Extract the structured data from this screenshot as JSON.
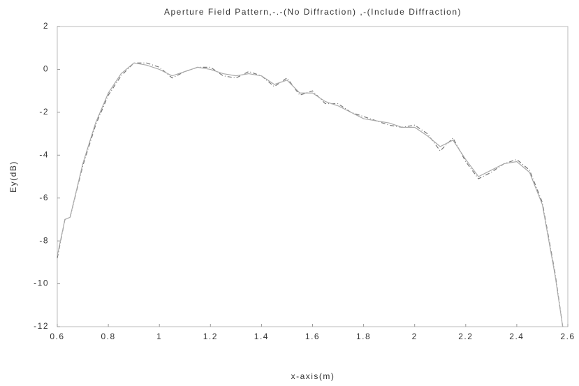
{
  "chart_data": {
    "type": "line",
    "title": "Aperture Field Pattern,-.-(No Diffraction) ,-(Include Diffraction)",
    "xlabel": "x-axis(m)",
    "ylabel": "Ey(dB)",
    "x": [
      0.6,
      0.63,
      0.65,
      0.7,
      0.75,
      0.8,
      0.85,
      0.9,
      0.95,
      1.0,
      1.05,
      1.1,
      1.15,
      1.2,
      1.25,
      1.3,
      1.35,
      1.4,
      1.45,
      1.5,
      1.55,
      1.6,
      1.65,
      1.7,
      1.75,
      1.8,
      1.85,
      1.9,
      1.95,
      2.0,
      2.05,
      2.1,
      2.15,
      2.2,
      2.25,
      2.3,
      2.35,
      2.4,
      2.45,
      2.5,
      2.55,
      2.58
    ],
    "series": [
      {
        "color": "#777777",
        "dash": "6,3,1,3",
        "values": [
          -8.8,
          -7.0,
          -6.9,
          -4.5,
          -2.6,
          -1.2,
          -0.3,
          0.3,
          0.3,
          0.1,
          -0.4,
          -0.1,
          0.1,
          0.1,
          -0.3,
          -0.4,
          -0.1,
          -0.3,
          -0.8,
          -0.4,
          -1.2,
          -1.0,
          -1.6,
          -1.6,
          -2.0,
          -2.2,
          -2.4,
          -2.6,
          -2.7,
          -2.6,
          -3.0,
          -3.8,
          -3.2,
          -4.3,
          -5.1,
          -4.8,
          -4.4,
          -4.2,
          -4.7,
          -6.2,
          -9.5,
          -12
        ]
      },
      {
        "color": "#aaaaaa",
        "dash": "",
        "values": [
          -8.7,
          -7.0,
          -6.9,
          -4.4,
          -2.5,
          -1.1,
          -0.2,
          0.3,
          0.2,
          0.0,
          -0.3,
          -0.1,
          0.1,
          0.0,
          -0.2,
          -0.3,
          -0.2,
          -0.3,
          -0.7,
          -0.5,
          -1.1,
          -1.1,
          -1.5,
          -1.7,
          -2.0,
          -2.3,
          -2.4,
          -2.5,
          -2.7,
          -2.7,
          -3.1,
          -3.6,
          -3.3,
          -4.2,
          -5.0,
          -4.7,
          -4.4,
          -4.3,
          -4.8,
          -6.3,
          -9.6,
          -12
        ]
      }
    ],
    "xlim": [
      0.6,
      2.6
    ],
    "xticks": [
      0.6,
      0.8,
      1,
      1.2,
      1.4,
      1.6,
      1.8,
      2,
      2.2,
      2.4,
      2.6
    ],
    "ylim": [
      -12,
      2
    ],
    "yticks": [
      -12,
      -10,
      -8,
      -6,
      -4,
      -2,
      0,
      2
    ]
  }
}
